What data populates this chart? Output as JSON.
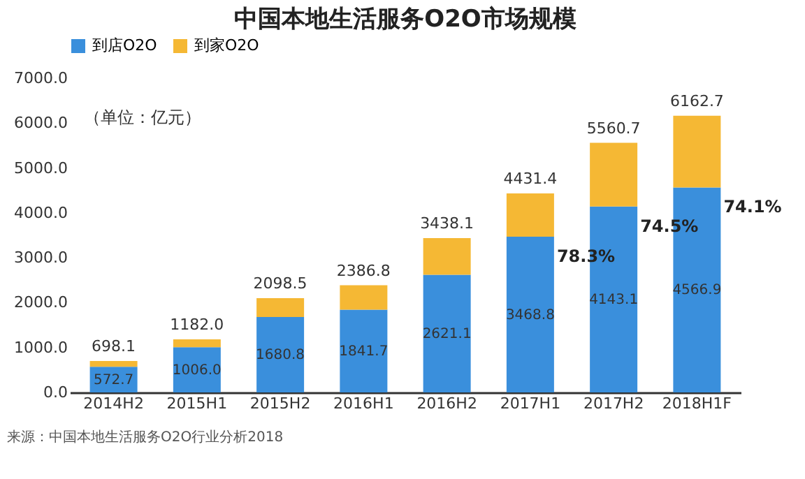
{
  "chart_data": {
    "type": "bar",
    "title": "中国本地生活服务O2O市场规模",
    "stacked": true,
    "categories": [
      "2014H2",
      "2015H1",
      "2015H2",
      "2016H1",
      "2016H2",
      "2017H1",
      "2017H2",
      "2018H1F"
    ],
    "series": [
      {
        "name": "到店O2O",
        "color": "#3a8fdc",
        "values": [
          572.7,
          1006.0,
          1680.8,
          1841.7,
          2621.1,
          3468.8,
          4143.1,
          4566.9
        ],
        "value_labels": [
          "572.7",
          "1006.0",
          "1680.8",
          "1841.7",
          "2621.1",
          "3468.8",
          "4143.1",
          "4566.9"
        ]
      },
      {
        "name": "到家O2O",
        "color": "#f5b834",
        "values": [
          125.4,
          176.0,
          417.7,
          545.1,
          817.0,
          962.6,
          1417.6,
          1595.8
        ]
      }
    ],
    "totals": [
      "698.1",
      "1182.0",
      "2098.5",
      "2386.8",
      "3438.1",
      "4431.4",
      "5560.7",
      "6162.7"
    ],
    "ylim": [
      0,
      7000
    ],
    "yticks": [
      {
        "value": 0,
        "label": "0.0"
      },
      {
        "value": 1000,
        "label": "1000.0"
      },
      {
        "value": 2000,
        "label": "2000.0"
      },
      {
        "value": 3000,
        "label": "3000.0"
      },
      {
        "value": 4000,
        "label": "4000.0"
      },
      {
        "value": 5000,
        "label": "5000.0"
      },
      {
        "value": 6000,
        "label": "6000.0"
      },
      {
        "value": 7000,
        "label": "7000.0"
      }
    ],
    "annotations": [
      "（单位：亿元）",
      "来源：中国本地生活服务O2O行业分析2018",
      {
        "text": "78.3%",
        "x": "2017H1",
        "y": 3468.8
      },
      {
        "text": "74.5%",
        "x": "2017H2",
        "y": 4143.1
      },
      {
        "text": "74.1%",
        "x": "2018H1F",
        "y": 4566.9
      }
    ],
    "legend": "top",
    "grid": false
  }
}
